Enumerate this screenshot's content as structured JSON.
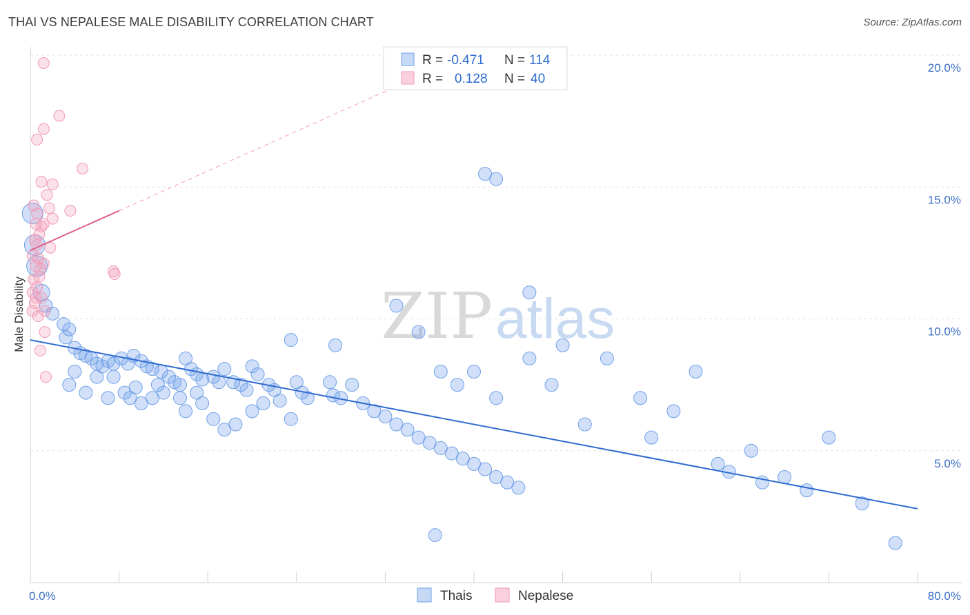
{
  "title": "THAI VS NEPALESE MALE DISABILITY CORRELATION CHART",
  "source": "Source: ZipAtlas.com",
  "watermark": {
    "zip": "ZIP",
    "atlas": "atlas"
  },
  "colors": {
    "blue": "#6fa0e8",
    "blue_line": "#2f6bd0",
    "pink": "#f29ab5",
    "pink_line": "#e0608a",
    "label": "#3a6fc4",
    "grid": "#e3e3e3"
  },
  "chart_data": {
    "type": "scatter",
    "ylabel": "Male Disability",
    "xlim": [
      0,
      80
    ],
    "ylim": [
      0,
      20
    ],
    "x_tick_labels": [
      "0.0%",
      "80.0%"
    ],
    "y_tick_labels": [
      {
        "value": 5,
        "label": "5.0%"
      },
      {
        "value": 10,
        "label": "10.0%"
      },
      {
        "value": 15,
        "label": "15.0%"
      },
      {
        "value": 20,
        "label": "20.0%"
      }
    ],
    "legend": {
      "rows": [
        {
          "r_label": "R =",
          "r_value": "-0.471",
          "n_label": "N =",
          "n_value": "114"
        },
        {
          "r_label": "R =",
          "r_value": "0.128",
          "n_label": "N =",
          "n_value": "40"
        }
      ]
    },
    "series": [
      {
        "name": "Thais",
        "trend": {
          "x0": 0,
          "y0": 9.2,
          "x1": 80,
          "y1": 2.8
        },
        "points": [
          [
            0.2,
            14.0
          ],
          [
            0.4,
            12.8
          ],
          [
            0.6,
            12.0
          ],
          [
            1.0,
            11.0
          ],
          [
            1.4,
            10.5
          ],
          [
            2.0,
            10.2
          ],
          [
            3.0,
            9.8
          ],
          [
            3.2,
            9.3
          ],
          [
            3.5,
            9.6
          ],
          [
            4.0,
            8.9
          ],
          [
            4.5,
            8.7
          ],
          [
            5.0,
            8.6
          ],
          [
            5.5,
            8.5
          ],
          [
            6.0,
            8.3
          ],
          [
            6.5,
            8.2
          ],
          [
            7.0,
            8.4
          ],
          [
            7.5,
            8.3
          ],
          [
            8.2,
            8.5
          ],
          [
            8.8,
            8.3
          ],
          [
            9.3,
            8.6
          ],
          [
            10.0,
            8.4
          ],
          [
            10.5,
            8.2
          ],
          [
            11.0,
            8.1
          ],
          [
            11.8,
            8.0
          ],
          [
            12.5,
            7.8
          ],
          [
            13.0,
            7.6
          ],
          [
            13.5,
            7.5
          ],
          [
            14.0,
            8.5
          ],
          [
            14.5,
            8.1
          ],
          [
            15.0,
            7.9
          ],
          [
            15.5,
            7.7
          ],
          [
            16.5,
            7.8
          ],
          [
            17.0,
            7.6
          ],
          [
            17.5,
            8.1
          ],
          [
            18.3,
            7.6
          ],
          [
            19.0,
            7.5
          ],
          [
            19.5,
            7.3
          ],
          [
            20.0,
            8.2
          ],
          [
            20.5,
            7.9
          ],
          [
            21.5,
            7.5
          ],
          [
            22.0,
            7.3
          ],
          [
            24.0,
            7.6
          ],
          [
            24.5,
            7.2
          ],
          [
            25.0,
            7.0
          ],
          [
            27.0,
            7.6
          ],
          [
            27.3,
            7.1
          ],
          [
            22.5,
            6.9
          ],
          [
            23.5,
            6.2
          ],
          [
            21.0,
            6.8
          ],
          [
            20.0,
            6.5
          ],
          [
            18.5,
            6.0
          ],
          [
            17.5,
            5.8
          ],
          [
            16.5,
            6.2
          ],
          [
            15.5,
            6.8
          ],
          [
            15.0,
            7.2
          ],
          [
            14.0,
            6.5
          ],
          [
            13.5,
            7.0
          ],
          [
            12.0,
            7.2
          ],
          [
            11.5,
            7.5
          ],
          [
            11.0,
            7.0
          ],
          [
            10.0,
            6.8
          ],
          [
            9.5,
            7.4
          ],
          [
            9.0,
            7.0
          ],
          [
            8.5,
            7.2
          ],
          [
            7.5,
            7.8
          ],
          [
            7.0,
            7.0
          ],
          [
            6.0,
            7.8
          ],
          [
            5.0,
            7.2
          ],
          [
            4.0,
            8.0
          ],
          [
            3.5,
            7.5
          ],
          [
            28.0,
            7.0
          ],
          [
            29.0,
            7.5
          ],
          [
            30.0,
            6.8
          ],
          [
            31.0,
            6.5
          ],
          [
            32.0,
            6.3
          ],
          [
            33.0,
            6.0
          ],
          [
            34.0,
            5.8
          ],
          [
            35.0,
            5.5
          ],
          [
            36.0,
            5.3
          ],
          [
            37.0,
            5.1
          ],
          [
            38.0,
            4.9
          ],
          [
            39.0,
            4.7
          ],
          [
            40.0,
            4.5
          ],
          [
            41.0,
            4.3
          ],
          [
            42.0,
            4.0
          ],
          [
            43.0,
            3.8
          ],
          [
            44.0,
            3.6
          ],
          [
            23.5,
            9.2
          ],
          [
            27.5,
            9.0
          ],
          [
            35.0,
            9.5
          ],
          [
            37.0,
            8.0
          ],
          [
            38.5,
            7.5
          ],
          [
            40.0,
            8.0
          ],
          [
            42.0,
            7.0
          ],
          [
            45.0,
            8.5
          ],
          [
            47.0,
            7.5
          ],
          [
            48.0,
            9.0
          ],
          [
            50.0,
            6.0
          ],
          [
            52.0,
            8.5
          ],
          [
            55.0,
            7.0
          ],
          [
            56.0,
            5.5
          ],
          [
            58.0,
            6.5
          ],
          [
            60.0,
            8.0
          ],
          [
            62.0,
            4.5
          ],
          [
            63.0,
            4.2
          ],
          [
            65.0,
            5.0
          ],
          [
            66.0,
            3.8
          ],
          [
            68.0,
            4.0
          ],
          [
            70.0,
            3.5
          ],
          [
            72.0,
            5.5
          ],
          [
            75.0,
            3.0
          ],
          [
            78.0,
            1.5
          ],
          [
            36.5,
            1.8
          ],
          [
            41.0,
            15.5
          ],
          [
            42.0,
            15.3
          ],
          [
            45.0,
            11.0
          ],
          [
            33.0,
            10.5
          ]
        ]
      },
      {
        "name": "Nepalese",
        "trend": {
          "x0": 0,
          "y0": 12.6,
          "x1": 8,
          "y1": 14.1
        },
        "trend_extended": {
          "x0": 8,
          "y0": 14.1,
          "x1": 34,
          "y1": 19.0
        },
        "points": [
          [
            1.2,
            19.7
          ],
          [
            2.6,
            17.7
          ],
          [
            1.2,
            17.2
          ],
          [
            0.6,
            16.8
          ],
          [
            4.7,
            15.7
          ],
          [
            1.0,
            15.2
          ],
          [
            2.0,
            15.1
          ],
          [
            1.5,
            14.7
          ],
          [
            1.7,
            14.2
          ],
          [
            3.6,
            14.1
          ],
          [
            0.6,
            14.0
          ],
          [
            2.0,
            13.8
          ],
          [
            0.5,
            13.6
          ],
          [
            1.0,
            13.5
          ],
          [
            1.2,
            13.6
          ],
          [
            0.4,
            13.0
          ],
          [
            0.6,
            12.8
          ],
          [
            0.7,
            12.3
          ],
          [
            1.2,
            12.1
          ],
          [
            0.5,
            12.0
          ],
          [
            0.8,
            11.6
          ],
          [
            0.3,
            11.5
          ],
          [
            0.6,
            11.2
          ],
          [
            0.2,
            11.0
          ],
          [
            1.0,
            10.8
          ],
          [
            0.4,
            10.6
          ],
          [
            0.2,
            10.3
          ],
          [
            1.3,
            10.3
          ],
          [
            0.7,
            10.1
          ],
          [
            7.5,
            11.8
          ],
          [
            7.6,
            11.7
          ],
          [
            1.3,
            9.5
          ],
          [
            0.9,
            8.8
          ],
          [
            1.4,
            7.8
          ],
          [
            0.2,
            12.4
          ],
          [
            0.3,
            14.3
          ],
          [
            0.8,
            13.2
          ],
          [
            0.5,
            10.8
          ],
          [
            1.8,
            12.7
          ],
          [
            0.9,
            11.9
          ]
        ]
      }
    ]
  }
}
